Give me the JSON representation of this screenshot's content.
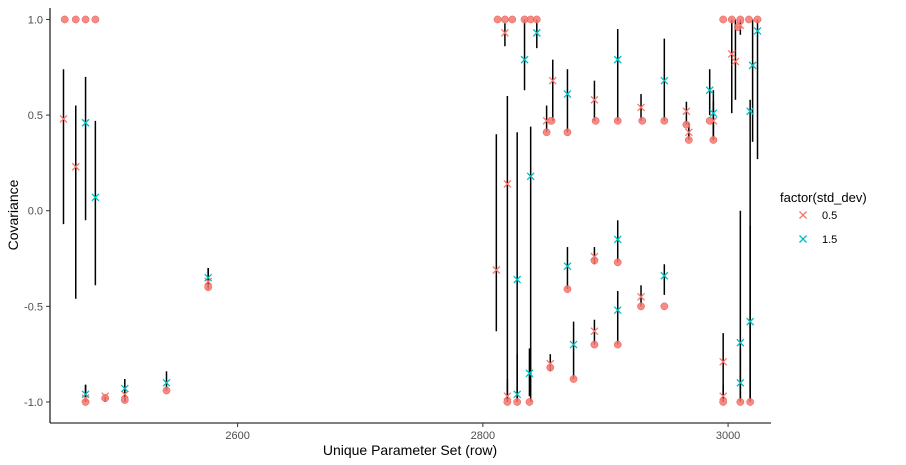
{
  "chart_data": {
    "type": "scatter",
    "xlabel": "Unique Parameter Set (row)",
    "ylabel": "Covariance",
    "xlim": [
      2447,
      3035
    ],
    "ylim": [
      -1.11,
      1.06
    ],
    "xticks": [
      2600,
      2800,
      3000
    ],
    "yticks": [
      -1.0,
      -0.5,
      0.0,
      0.5,
      1.0
    ],
    "ytick_labels": [
      "-1.0",
      "-0.5",
      "0.0",
      "0.5",
      "1.0"
    ],
    "xtick_labels": [
      "2600",
      "2800",
      "3000"
    ],
    "grid": false,
    "legend": {
      "title": "factor(std_dev)",
      "position": "right",
      "entries": [
        {
          "label": "0.5",
          "color": "#F8766D"
        },
        {
          "label": "1.5",
          "color": "#00BFC4"
        }
      ]
    },
    "colors": {
      "sd_0_5": "#F8766D",
      "sd_1_5": "#00BFC4",
      "points": "#F8766D",
      "error_bars": "#000000"
    },
    "points": [
      [
        2459,
        1.0
      ],
      [
        2468,
        1.0
      ],
      [
        2476,
        1.0
      ],
      [
        2484,
        1.0
      ],
      [
        2476,
        -1.0
      ],
      [
        2492,
        -0.98
      ],
      [
        2508,
        -0.99
      ],
      [
        2542,
        -0.94
      ],
      [
        2576,
        -0.4
      ],
      [
        2812,
        1.0
      ],
      [
        2818,
        1.0
      ],
      [
        2824,
        1.0
      ],
      [
        2834,
        1.0
      ],
      [
        2839,
        1.0
      ],
      [
        2844,
        1.0
      ],
      [
        2820,
        -1.0
      ],
      [
        2828,
        -1.0
      ],
      [
        2838,
        -1.0
      ],
      [
        2852,
        0.41
      ],
      [
        2856,
        0.47
      ],
      [
        2869,
        0.41
      ],
      [
        2892,
        0.47
      ],
      [
        2910,
        0.47
      ],
      [
        2930,
        0.47
      ],
      [
        2948,
        0.47
      ],
      [
        2966,
        0.45
      ],
      [
        2968,
        0.37
      ],
      [
        2985,
        0.47
      ],
      [
        2988,
        0.37
      ],
      [
        2855,
        -0.82
      ],
      [
        2874,
        -0.88
      ],
      [
        2869,
        -0.41
      ],
      [
        2891,
        -0.7
      ],
      [
        2910,
        -0.7
      ],
      [
        2929,
        -0.5
      ],
      [
        2948,
        -0.5
      ],
      [
        2891,
        -0.26
      ],
      [
        2910,
        -0.27
      ],
      [
        2996,
        1.0
      ],
      [
        3003,
        1.0
      ],
      [
        3010,
        1.0
      ],
      [
        3017,
        1.0
      ],
      [
        3024,
        1.0
      ],
      [
        3008,
        0.96
      ],
      [
        2996,
        -1.0
      ],
      [
        3010,
        -1.0
      ],
      [
        3018,
        -1.0
      ]
    ],
    "series": [
      {
        "name": "0.5",
        "estimates": [
          {
            "x": 2458,
            "y": 0.48,
            "lo": -0.07,
            "hi": 0.74
          },
          {
            "x": 2468,
            "y": 0.23,
            "lo": -0.46,
            "hi": 0.55
          },
          {
            "x": 2476,
            "y": -0.98,
            "lo": -1.0,
            "hi": -0.91
          },
          {
            "x": 2492,
            "y": -0.97,
            "lo": -1.0,
            "hi": -0.96
          },
          {
            "x": 2508,
            "y": -0.96,
            "lo": -1.0,
            "hi": -0.93
          },
          {
            "x": 2576,
            "y": -0.37,
            "lo": -0.41,
            "hi": -0.3
          },
          {
            "x": 2811,
            "y": -0.31,
            "lo": -0.63,
            "hi": 0.4
          },
          {
            "x": 2818,
            "y": 0.93,
            "lo": 0.86,
            "hi": 0.98
          },
          {
            "x": 2820,
            "y": 0.14,
            "lo": -1.0,
            "hi": 0.6
          },
          {
            "x": 2820,
            "y": -0.97,
            "lo": -1.0,
            "hi": -0.88
          },
          {
            "x": 2852,
            "y": 0.47,
            "lo": 0.41,
            "hi": 0.55
          },
          {
            "x": 2857,
            "y": 0.68,
            "lo": 0.47,
            "hi": 0.79
          },
          {
            "x": 2855,
            "y": -0.8,
            "lo": -0.84,
            "hi": -0.75
          },
          {
            "x": 2891,
            "y": 0.58,
            "lo": 0.47,
            "hi": 0.68
          },
          {
            "x": 2891,
            "y": -0.24,
            "lo": -0.28,
            "hi": -0.19
          },
          {
            "x": 2891,
            "y": -0.63,
            "lo": -0.7,
            "hi": -0.57
          },
          {
            "x": 2929,
            "y": 0.54,
            "lo": 0.47,
            "hi": 0.61
          },
          {
            "x": 2929,
            "y": -0.45,
            "lo": -0.5,
            "hi": -0.39
          },
          {
            "x": 2966,
            "y": 0.52,
            "lo": 0.45,
            "hi": 0.57
          },
          {
            "x": 2968,
            "y": 0.41,
            "lo": 0.37,
            "hi": 0.46
          },
          {
            "x": 2988,
            "y": 0.47,
            "lo": 0.37,
            "hi": 0.57
          },
          {
            "x": 2996,
            "y": -0.79,
            "lo": -1.0,
            "hi": -0.64
          },
          {
            "x": 2996,
            "y": -0.97,
            "lo": -1.0,
            "hi": -0.91
          },
          {
            "x": 3003,
            "y": 0.82,
            "lo": 0.51,
            "hi": 1.0
          },
          {
            "x": 3006,
            "y": 0.78,
            "lo": 0.58,
            "hi": 1.0
          },
          {
            "x": 3010,
            "y": 0.97,
            "lo": 0.92,
            "hi": 1.0
          }
        ]
      },
      {
        "name": "1.5",
        "estimates": [
          {
            "x": 2476,
            "y": 0.46,
            "lo": -0.05,
            "hi": 0.7
          },
          {
            "x": 2484,
            "y": 0.07,
            "lo": -0.39,
            "hi": 0.47
          },
          {
            "x": 2476,
            "y": -0.96,
            "lo": -1.0,
            "hi": -0.91
          },
          {
            "x": 2508,
            "y": -0.93,
            "lo": -0.99,
            "hi": -0.88
          },
          {
            "x": 2542,
            "y": -0.9,
            "lo": -0.94,
            "hi": -0.84
          },
          {
            "x": 2576,
            "y": -0.35,
            "lo": -0.4,
            "hi": -0.3
          },
          {
            "x": 2828,
            "y": -0.36,
            "lo": -1.0,
            "hi": 0.41
          },
          {
            "x": 2828,
            "y": -0.96,
            "lo": -1.0,
            "hi": -0.75
          },
          {
            "x": 2834,
            "y": 0.79,
            "lo": 0.63,
            "hi": 1.0
          },
          {
            "x": 2839,
            "y": 0.18,
            "lo": -1.0,
            "hi": 0.44
          },
          {
            "x": 2838,
            "y": -0.85,
            "lo": -0.97,
            "hi": -0.72
          },
          {
            "x": 2844,
            "y": 0.93,
            "lo": 0.85,
            "hi": 1.0
          },
          {
            "x": 2869,
            "y": 0.61,
            "lo": 0.41,
            "hi": 0.74
          },
          {
            "x": 2869,
            "y": -0.29,
            "lo": -0.41,
            "hi": -0.19
          },
          {
            "x": 2874,
            "y": -0.7,
            "lo": -0.88,
            "hi": -0.58
          },
          {
            "x": 2910,
            "y": 0.79,
            "lo": 0.47,
            "hi": 0.95
          },
          {
            "x": 2910,
            "y": -0.15,
            "lo": -0.27,
            "hi": -0.05
          },
          {
            "x": 2910,
            "y": -0.52,
            "lo": -0.7,
            "hi": -0.42
          },
          {
            "x": 2948,
            "y": 0.68,
            "lo": 0.47,
            "hi": 0.9
          },
          {
            "x": 2948,
            "y": -0.34,
            "lo": -0.44,
            "hi": -0.28
          },
          {
            "x": 2985,
            "y": 0.63,
            "lo": 0.5,
            "hi": 0.74
          },
          {
            "x": 2988,
            "y": 0.51,
            "lo": 0.37,
            "hi": 0.63
          },
          {
            "x": 3010,
            "y": -0.69,
            "lo": -1.0,
            "hi": 0.0
          },
          {
            "x": 3010,
            "y": -0.9,
            "lo": -1.0,
            "hi": -0.72
          },
          {
            "x": 3018,
            "y": 0.52,
            "lo": -1.0,
            "hi": 0.58
          },
          {
            "x": 3018,
            "y": -0.58,
            "lo": -1.0,
            "hi": -0.08
          },
          {
            "x": 3020,
            "y": 0.76,
            "lo": 0.36,
            "hi": 1.0
          },
          {
            "x": 3024,
            "y": 0.94,
            "lo": 0.27,
            "hi": 1.0
          }
        ]
      }
    ]
  }
}
